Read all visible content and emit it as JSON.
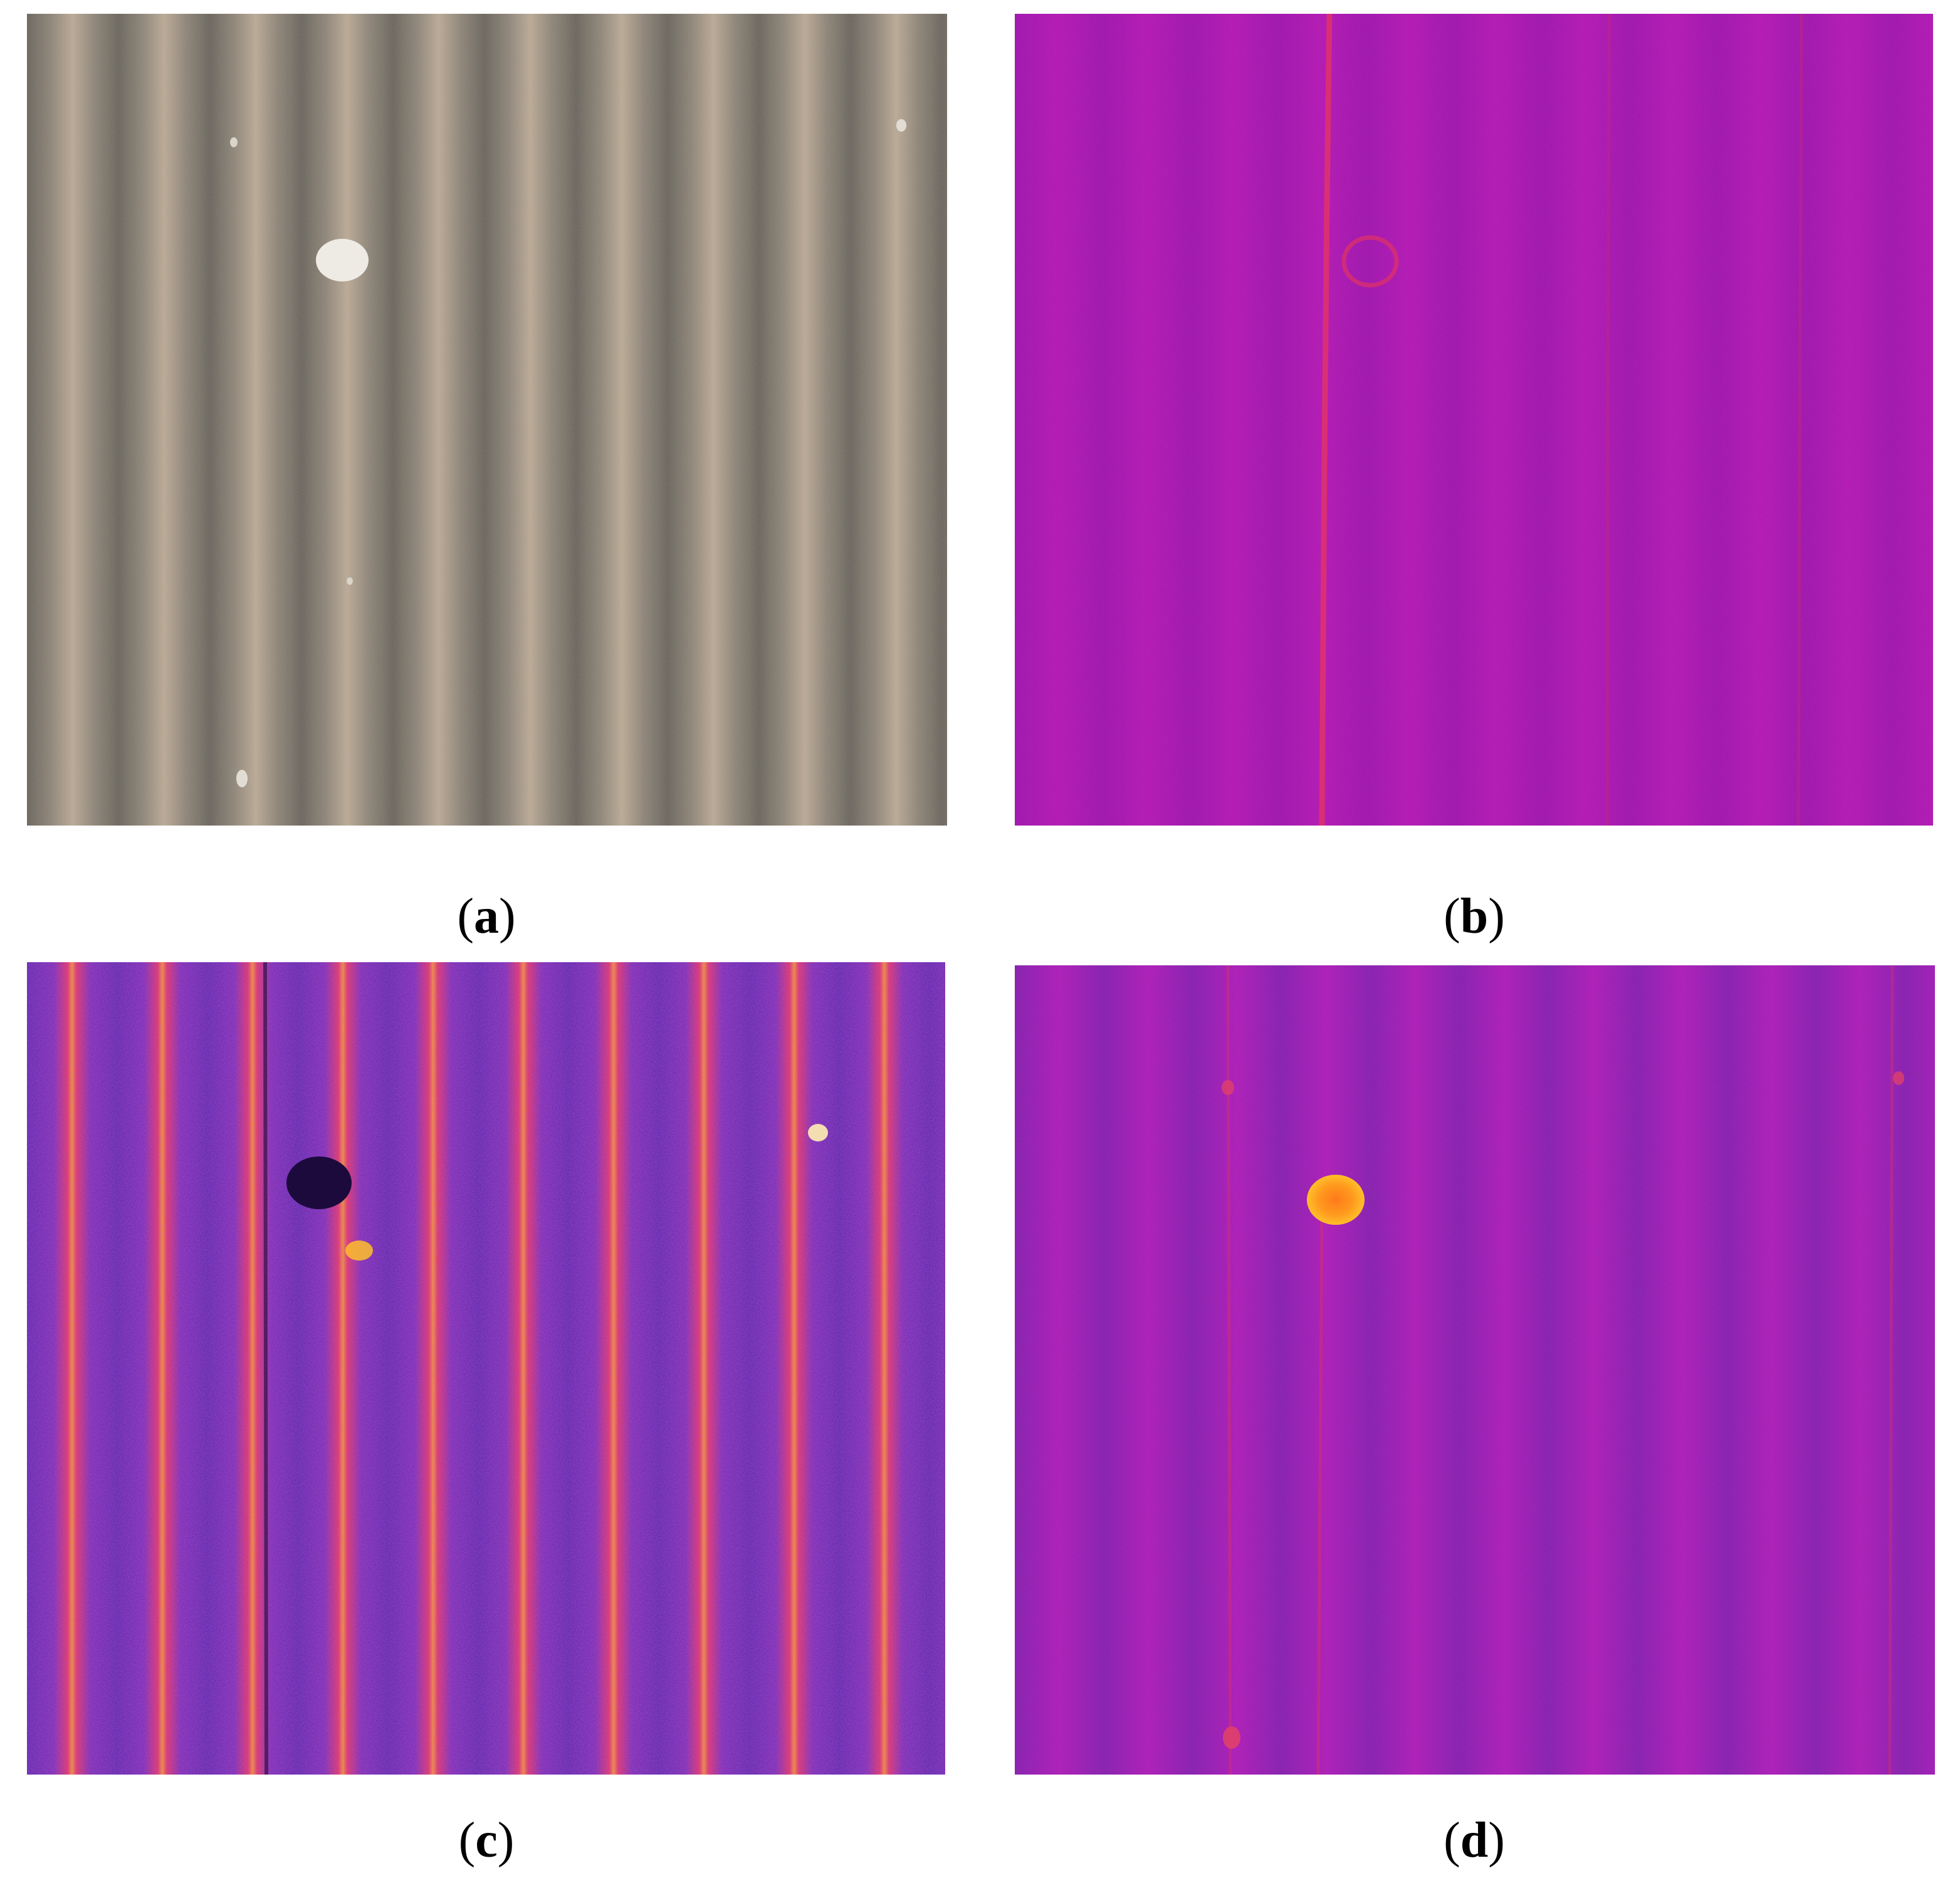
{
  "figure": {
    "panels": [
      {
        "id": "a",
        "open": "(",
        "letter": "a",
        "close": ")",
        "image_kind": "rgb-aerial-photo-of-furrowed-soil-with-stones",
        "colors": {
          "light": "#c9b49c",
          "dark": "#5c584f",
          "speck": "#e9e4dc"
        }
      },
      {
        "id": "b",
        "open": "(",
        "letter": "b",
        "close": ")",
        "image_kind": "thermal-false-color-magenta-with-faint-red-line",
        "colors": {
          "base": "#a812b0",
          "dark": "#8a10a8",
          "line": "#e0326a"
        }
      },
      {
        "id": "c",
        "open": "(",
        "letter": "c",
        "close": ")",
        "image_kind": "thermal-false-color-high-contrast-orange-and-purple-stripes",
        "colors": {
          "hot": "#ff9a1e",
          "warm": "#e8325a",
          "cool": "#6a2ab0",
          "dark": "#1c0a3c"
        }
      },
      {
        "id": "d",
        "open": "(",
        "letter": "d",
        "close": ")",
        "image_kind": "thermal-false-color-magenta-stripes-with-bright-orange-stone",
        "colors": {
          "base": "#9a14b4",
          "dark": "#6e1aa8",
          "spot": "#ff8a1a",
          "spot_ring": "#ffbf2a"
        }
      }
    ]
  }
}
